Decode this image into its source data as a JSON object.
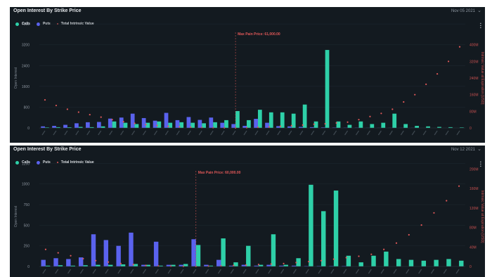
{
  "colors": {
    "calls": "#2ed0a8",
    "puts": "#5a62ee",
    "intrinsic": "#e05858"
  },
  "panels": [
    {
      "title": "Open Interest By Strike Price",
      "date": "Nov 05 2021",
      "chevron_icon": "chevron-down-icon",
      "menu_icon": "more-vertical-icon",
      "legend": {
        "calls": "Calls",
        "puts": "Puts",
        "intrinsic": "Total Intrinsic Value"
      }
    },
    {
      "title": "Open Interest By Strike Price",
      "date": "Nov 12 2021",
      "chevron_icon": "chevron-down-icon",
      "menu_icon": "more-vertical-icon",
      "legend": {
        "calls": "Calls",
        "puts": "Puts",
        "intrinsic": "Total Intrinsic Value"
      }
    }
  ],
  "chart_data": [
    {
      "type": "bar",
      "xlabel": "",
      "ylabel": "Open Interest",
      "y2label": "Intrinsic Value at Expiration [USD]",
      "ylim": [
        0,
        3840
      ],
      "y_ticks": [
        "0",
        "800",
        "1600",
        "2400",
        "3200",
        "4000"
      ],
      "y_tick_values": [
        0,
        800,
        1600,
        2400,
        3200,
        4000
      ],
      "y2lim": [
        0,
        480
      ],
      "y2_ticks": [
        "0",
        "80M",
        "160M",
        "240M",
        "320M",
        "400M"
      ],
      "y2_tick_values": [
        0,
        80,
        160,
        240,
        320,
        400
      ],
      "categories_visible": false,
      "max_pain_label": "Max Pain Price: 61,000.00",
      "max_pain_index": 17,
      "series": [
        {
          "name": "Calls",
          "values": [
            20,
            30,
            25,
            40,
            30,
            60,
            250,
            200,
            150,
            200,
            250,
            200,
            220,
            200,
            180,
            220,
            300,
            650,
            300,
            700,
            600,
            600,
            550,
            900,
            250,
            3000,
            250,
            120,
            250,
            150,
            200,
            550,
            150,
            80,
            60,
            40,
            30,
            20
          ]
        },
        {
          "name": "Puts",
          "values": [
            60,
            80,
            120,
            180,
            220,
            230,
            360,
            400,
            550,
            380,
            280,
            580,
            300,
            420,
            310,
            400,
            200,
            150,
            80,
            350,
            200,
            70,
            60,
            40,
            30,
            20,
            15,
            10,
            10,
            5,
            5,
            5,
            5,
            5,
            0,
            0,
            0,
            0
          ]
        },
        {
          "name": "Total Intrinsic Value",
          "values": [
            135,
            108,
            90,
            76,
            64,
            52,
            40,
            30,
            22,
            16,
            12,
            8,
            6,
            4,
            2,
            1,
            0.5,
            0.2,
            1,
            3,
            5,
            8,
            11,
            14,
            18,
            20,
            24,
            28,
            40,
            55,
            70,
            90,
            125,
            160,
            210,
            260,
            320,
            390
          ]
        }
      ]
    },
    {
      "type": "bar",
      "xlabel": "",
      "ylabel": "Open Interest",
      "y2label": "Intrinsic Value at Expiration [USD]",
      "ylim": [
        0,
        1210
      ],
      "y_ticks": [
        "0",
        "250",
        "500",
        "750",
        "1000",
        "1250"
      ],
      "y_tick_values": [
        0,
        250,
        500,
        750,
        1000,
        1250
      ],
      "y2lim": [
        0,
        205
      ],
      "y2_ticks": [
        "0",
        "40M",
        "80M",
        "120M",
        "160M",
        "200M"
      ],
      "y2_tick_values": [
        0,
        40,
        80,
        120,
        160,
        200
      ],
      "categories_visible": false,
      "max_pain_label": "Max Pain Price: 60,000.00",
      "max_pain_index": 12,
      "series": [
        {
          "name": "Calls",
          "values": [
            10,
            15,
            10,
            15,
            20,
            20,
            25,
            30,
            20,
            10,
            20,
            30,
            260,
            10,
            340,
            50,
            250,
            20,
            390,
            20,
            100,
            990,
            670,
            920,
            130,
            50,
            130,
            180,
            90,
            80,
            70,
            80,
            90,
            70
          ]
        },
        {
          "name": "Puts",
          "values": [
            80,
            100,
            90,
            110,
            390,
            320,
            250,
            410,
            20,
            300,
            20,
            20,
            330,
            20,
            80,
            10,
            20,
            10,
            20,
            10,
            10,
            5,
            5,
            5,
            5,
            0,
            0,
            0,
            0,
            0,
            0,
            0,
            0,
            0
          ]
        },
        {
          "name": "Total Intrinsic Value",
          "values": [
            35,
            28,
            22,
            16,
            12,
            9,
            6,
            4,
            2,
            1,
            0.5,
            0.2,
            0.1,
            0.5,
            1,
            2,
            3,
            4,
            5,
            6,
            8,
            10,
            12,
            15,
            18,
            21,
            25,
            35,
            48,
            65,
            85,
            110,
            135,
            165
          ]
        }
      ]
    }
  ]
}
